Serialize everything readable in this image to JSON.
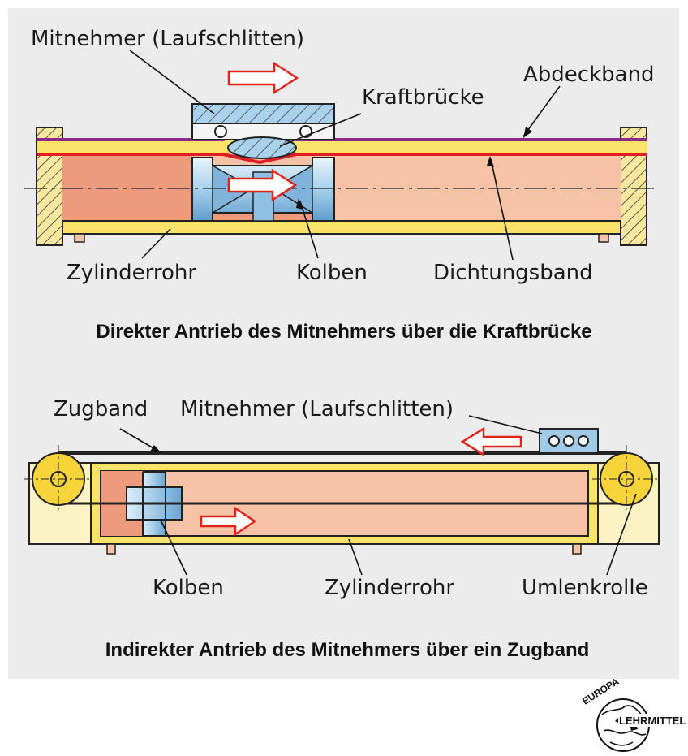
{
  "top": {
    "label_mitnehmer": "Mitnehmer (Laufschlitten)",
    "label_kraftbruecke": "Kraftbrücke",
    "label_abdeckband": "Abdeckband",
    "label_zylinderrohr": "Zylinderrohr",
    "label_kolben": "Kolben",
    "label_dichtungsband": "Dichtungsband",
    "caption": "Direkter Antrieb des Mitnehmers über die Kraftbrücke"
  },
  "bottom": {
    "label_zugband": "Zugband",
    "label_mitnehmer": "Mitnehmer (Laufschlitten)",
    "label_kolben": "Kolben",
    "label_zylinderrohr": "Zylinderrohr",
    "label_umlenkrolle": "Umlenkrolle",
    "caption": "Indirekter Antrieb des Mitnehmers über ein Zugband"
  },
  "logo": {
    "line1": "EUROPA",
    "line2": "LEHRMITTEL"
  },
  "colors": {
    "panel": "#ececec",
    "cylinder_fill": "#f6c3a6",
    "pressure_fill": "#ee9a7c",
    "tube_yellow": "#fbe36a",
    "piston_blue": "#9fcbe8",
    "cover_band": "#8a2a8a",
    "seal_band": "#e21e25",
    "arrow_red": "#e2231a",
    "roller_yellow": "#f7d43a",
    "housing_cream": "#fbf3c4"
  }
}
